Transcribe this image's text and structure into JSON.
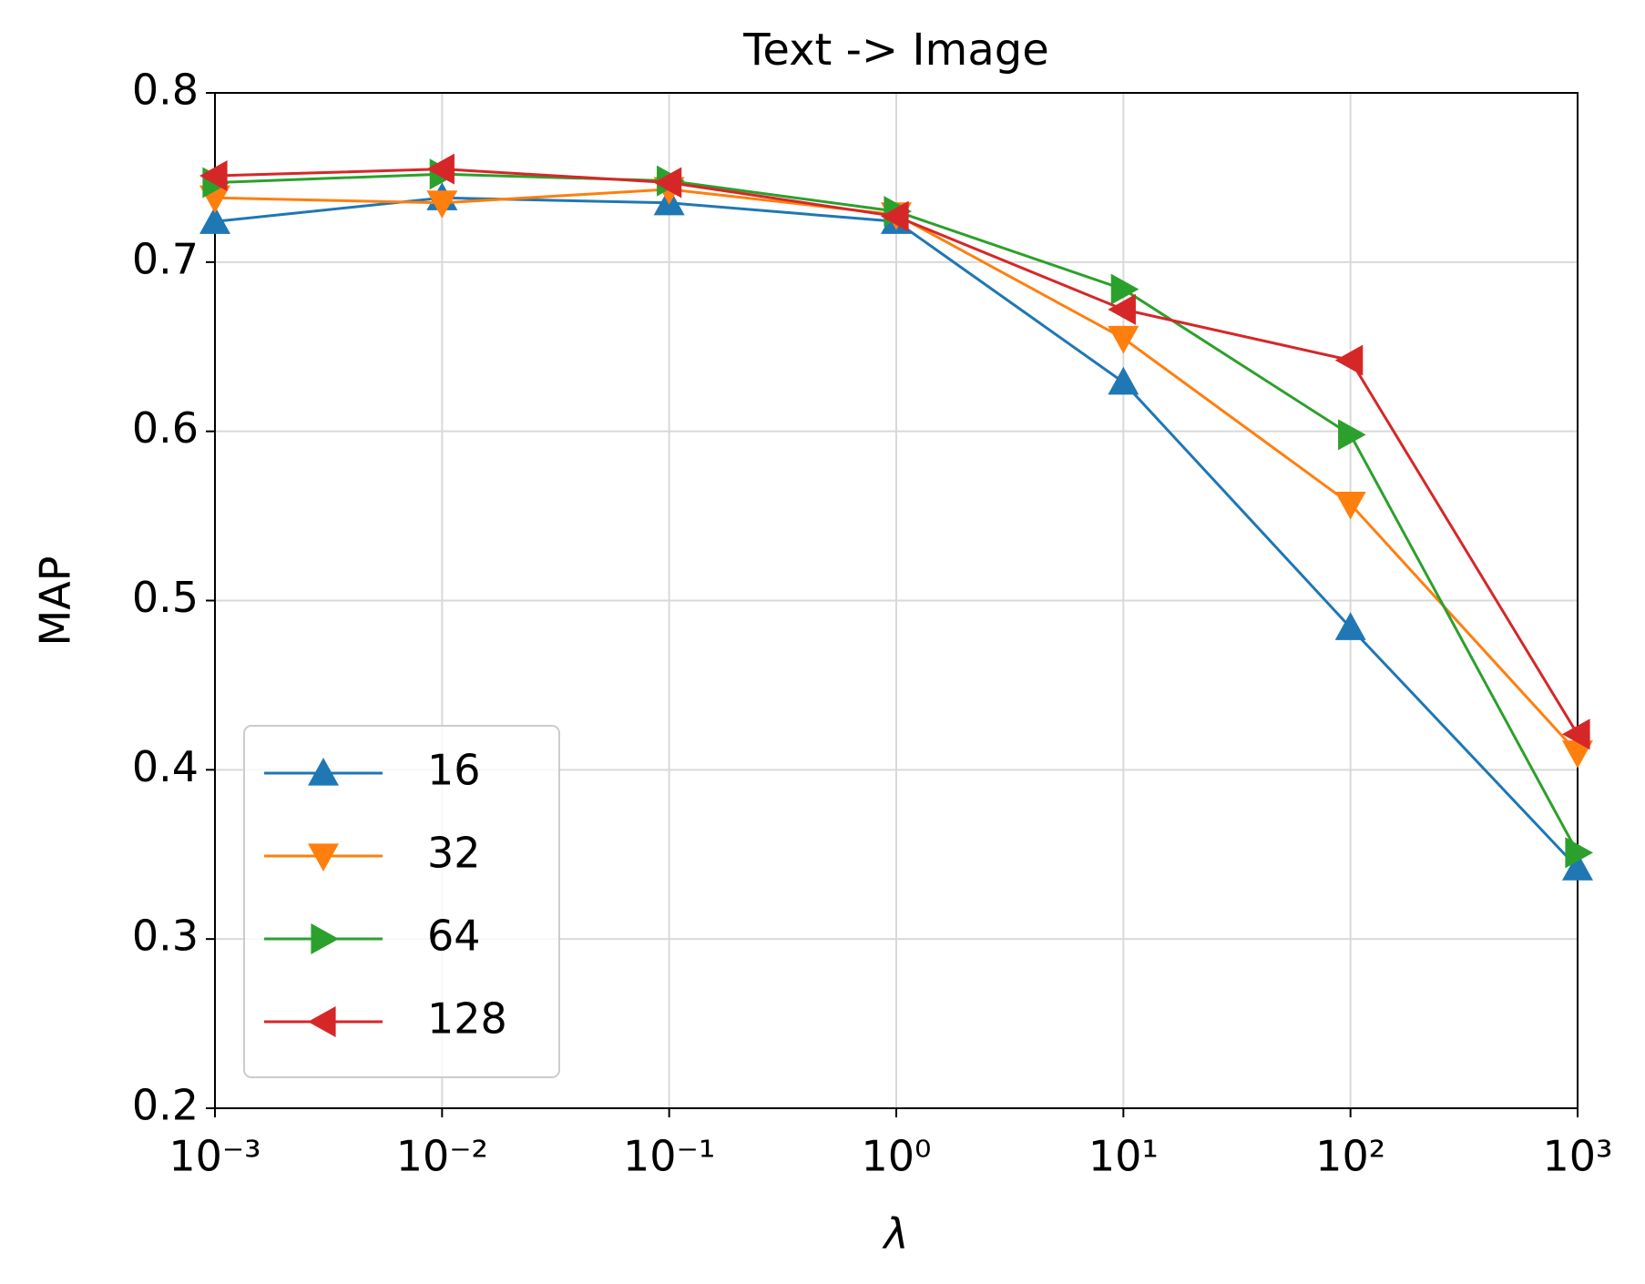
{
  "chart_data": {
    "type": "line",
    "title": "Text -> Image",
    "x_label": "λ",
    "y_label": "MAP",
    "x": [
      0.001,
      0.01,
      0.1,
      1,
      10,
      100,
      1000
    ],
    "xscale": "log",
    "xlim": [
      0.001,
      1000
    ],
    "xticks": [
      {
        "value": 0.001,
        "label": "10⁻³"
      },
      {
        "value": 0.01,
        "label": "10⁻²"
      },
      {
        "value": 0.1,
        "label": "10⁻¹"
      },
      {
        "value": 1,
        "label": "10⁰"
      },
      {
        "value": 10,
        "label": "10¹"
      },
      {
        "value": 100,
        "label": "10²"
      },
      {
        "value": 1000,
        "label": "10³"
      }
    ],
    "ylim": [
      0.2,
      0.8
    ],
    "yticks": [
      0.2,
      0.3,
      0.4,
      0.5,
      0.6,
      0.7,
      0.8
    ],
    "grid": true,
    "legend": "lower left",
    "series": [
      {
        "name": "16",
        "color": "#1f77b4",
        "marker": "triangle-up",
        "values": [
          0.724,
          0.738,
          0.735,
          0.724,
          0.629,
          0.484,
          0.342
        ]
      },
      {
        "name": "32",
        "color": "#ff7f0e",
        "marker": "triangle-down",
        "values": [
          0.738,
          0.735,
          0.743,
          0.728,
          0.655,
          0.557,
          0.41
        ]
      },
      {
        "name": "64",
        "color": "#2ca02c",
        "marker": "triangle-right",
        "values": [
          0.747,
          0.752,
          0.748,
          0.73,
          0.684,
          0.598,
          0.351
        ]
      },
      {
        "name": "128",
        "color": "#d62728",
        "marker": "triangle-left",
        "values": [
          0.751,
          0.755,
          0.747,
          0.727,
          0.672,
          0.642,
          0.421
        ]
      }
    ]
  }
}
